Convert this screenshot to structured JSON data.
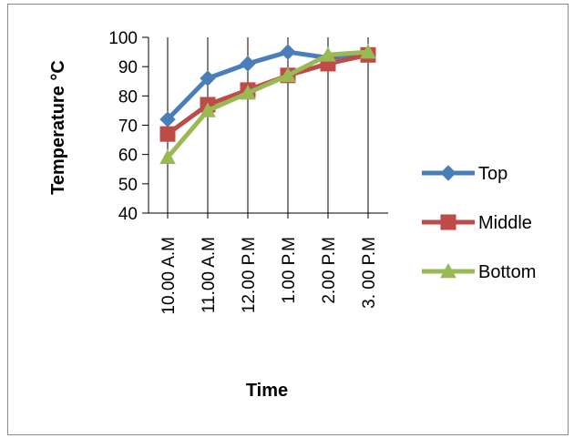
{
  "chart_data": {
    "type": "line",
    "categories": [
      "10.00 A.M",
      "11.00 A.M",
      "12.00 P.M",
      "1.00 P.M",
      "2.00 P.M",
      "3. 00 P.M"
    ],
    "series": [
      {
        "name": "Top",
        "values": [
          72,
          86,
          91,
          95,
          93,
          94
        ],
        "color": "#4a7ebb",
        "marker": "diamond"
      },
      {
        "name": "Middle",
        "values": [
          67,
          77,
          82,
          87,
          91,
          94
        ],
        "color": "#be4b48",
        "marker": "square"
      },
      {
        "name": "Bottom",
        "values": [
          59,
          75,
          81,
          87,
          94,
          95
        ],
        "color": "#98b954",
        "marker": "triangle"
      }
    ],
    "xlabel": "Time",
    "ylabel": "Temperature °C",
    "ylim": [
      40,
      100
    ],
    "yticks": [
      40,
      50,
      60,
      70,
      80,
      90,
      100
    ],
    "grid": "vertical lines at categories",
    "legend": "right"
  }
}
